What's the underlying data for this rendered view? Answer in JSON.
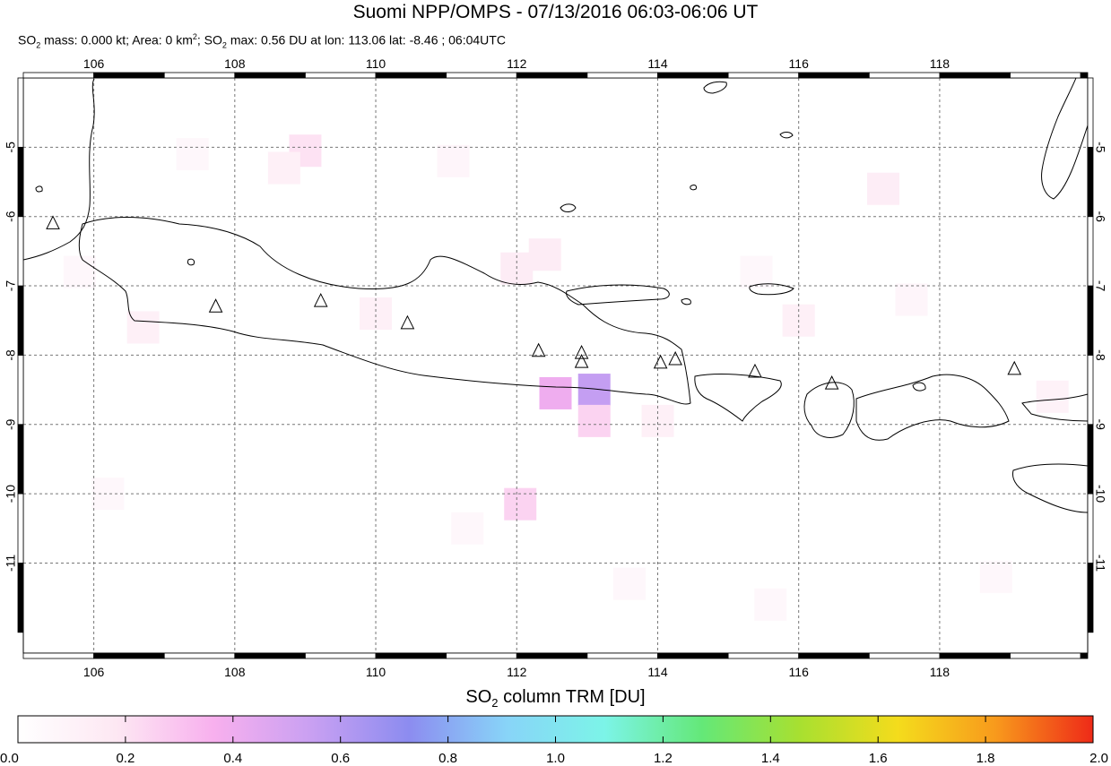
{
  "title": "Suomi NPP/OMPS - 07/13/2016 06:03-06:06 UT",
  "subtitle": {
    "p1": "SO",
    "sub1": "2",
    "p2": " mass: 0.000 kt; Area: 0 km",
    "sup1": "2",
    "p3": "; SO",
    "sub2": "2",
    "p4": " max: 0.56 DU at lon: 113.06 lat: -8.46 ; 06:04UTC"
  },
  "map": {
    "lon_ticks": [
      "106",
      "108",
      "110",
      "112",
      "114",
      "116",
      "118"
    ],
    "lat_ticks": [
      "-5",
      "-6",
      "-7",
      "-8",
      "-9",
      "-10",
      "-11"
    ],
    "lon_range": [
      105.0,
      120.1
    ],
    "lat_range": [
      -12.3,
      -4.0
    ],
    "volcano_marker": "triangle-outline",
    "volcanoes": [
      [
        105.42,
        -6.1
      ],
      [
        107.73,
        -7.3
      ],
      [
        109.22,
        -7.22
      ],
      [
        110.45,
        -7.54
      ],
      [
        112.31,
        -7.94
      ],
      [
        112.92,
        -7.97
      ],
      [
        112.92,
        -8.1
      ],
      [
        114.04,
        -8.11
      ],
      [
        114.25,
        -8.06
      ],
      [
        115.38,
        -8.24
      ],
      [
        116.47,
        -8.41
      ],
      [
        119.06,
        -8.2
      ]
    ],
    "so2_cells_DU": [
      {
        "lon": 112.55,
        "lat": -8.55,
        "du": 0.4
      },
      {
        "lon": 113.1,
        "lat": -8.5,
        "du": 0.56
      },
      {
        "lon": 113.1,
        "lat": -8.95,
        "du": 0.25
      },
      {
        "lon": 112.05,
        "lat": -10.15,
        "du": 0.25
      },
      {
        "lon": 109.0,
        "lat": -5.05,
        "du": 0.2
      },
      {
        "lon": 108.7,
        "lat": -5.3,
        "du": 0.12
      },
      {
        "lon": 112.4,
        "lat": -6.55,
        "du": 0.15
      },
      {
        "lon": 112.0,
        "lat": -6.75,
        "du": 0.15
      },
      {
        "lon": 117.2,
        "lat": -5.6,
        "du": 0.14
      },
      {
        "lon": 116.0,
        "lat": -7.5,
        "du": 0.12
      },
      {
        "lon": 110.0,
        "lat": -7.4,
        "du": 0.12
      },
      {
        "lon": 106.7,
        "lat": -7.6,
        "du": 0.12
      },
      {
        "lon": 111.1,
        "lat": -5.2,
        "du": 0.08
      },
      {
        "lon": 114.0,
        "lat": -8.95,
        "du": 0.12
      },
      {
        "lon": 106.2,
        "lat": -10.0,
        "du": 0.06
      },
      {
        "lon": 113.6,
        "lat": -11.3,
        "du": 0.06
      },
      {
        "lon": 115.6,
        "lat": -11.6,
        "du": 0.06
      },
      {
        "lon": 111.3,
        "lat": -10.5,
        "du": 0.06
      },
      {
        "lon": 118.8,
        "lat": -11.2,
        "du": 0.06
      },
      {
        "lon": 119.6,
        "lat": -8.6,
        "du": 0.1
      },
      {
        "lon": 107.4,
        "lat": -5.1,
        "du": 0.06
      },
      {
        "lon": 115.4,
        "lat": -6.8,
        "du": 0.06
      },
      {
        "lon": 117.6,
        "lat": -7.2,
        "du": 0.08
      },
      {
        "lon": 105.8,
        "lat": -6.8,
        "du": 0.06
      }
    ]
  },
  "colorbar": {
    "title_p1": "SO",
    "title_sub": "2",
    "title_p2": " column TRM [DU]",
    "tick_labels": [
      "0.0",
      "0.2",
      "0.4",
      "0.6",
      "0.8",
      "1.0",
      "1.2",
      "1.4",
      "1.6",
      "1.8",
      "2.0"
    ],
    "range": [
      0.0,
      2.0
    ],
    "colors": [
      "#ffffff",
      "#fde8f3",
      "#f8b0ee",
      "#c9a0f2",
      "#8c8cf0",
      "#88d4f8",
      "#7cf4e8",
      "#64e878",
      "#a8e030",
      "#f4dc1c",
      "#f89a1c",
      "#ee2a18"
    ]
  }
}
